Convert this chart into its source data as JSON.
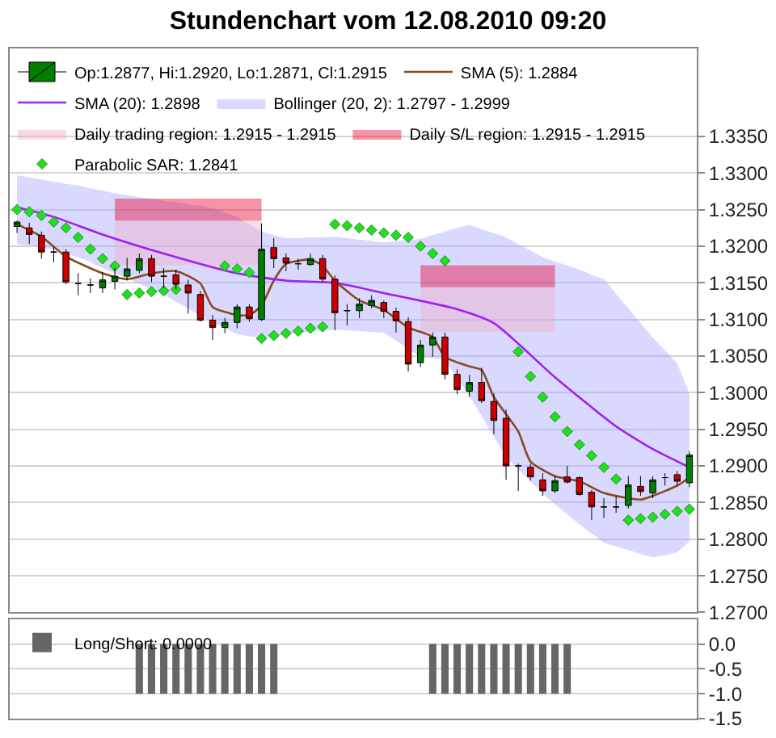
{
  "chart_data": [
    {
      "type": "candlestick",
      "title": "Stundenchart vom 12.08.2010 09:20",
      "categories": [
        null,
        null,
        null,
        null,
        null,
        null,
        null,
        null,
        null,
        null,
        null,
        null,
        null,
        null,
        null,
        null,
        null,
        null,
        null,
        null,
        null,
        null,
        null,
        null,
        null,
        null,
        null,
        null,
        null,
        null,
        null,
        null,
        null,
        null,
        null,
        null,
        null,
        null,
        null,
        null,
        null,
        null,
        null,
        null,
        null,
        null,
        null,
        null,
        null,
        null,
        null,
        null,
        null,
        null,
        null,
        null
      ],
      "series": [
        {
          "type": "candlestick",
          "name": "Op:1.2877, Hi:1.2920, Lo:1.2871, Cl:1.2915",
          "colors": [
            "#008000",
            "#cc0000",
            "#cc0000",
            "#000000",
            "#cc0000",
            "#000000",
            "#000000",
            "#008000",
            "#008000",
            "#008000",
            "#008000",
            "#cc0000",
            "#000000",
            "#cc0000",
            "#cc0000",
            "#cc0000",
            "#cc0000",
            "#008000",
            "#008000",
            "#cc0000",
            "#008000",
            "#cc0000",
            "#cc0000",
            "#000000",
            "#008000",
            "#cc0000",
            "#cc0000",
            "#000000",
            "#008000",
            "#008000",
            "#cc0000",
            "#cc0000",
            "#cc0000",
            "#008000",
            "#008000",
            "#cc0000",
            "#cc0000",
            "#008000",
            "#cc0000",
            "#cc0000",
            "#cc0000",
            "#000000",
            "#cc0000",
            "#cc0000",
            "#008000",
            "#cc0000",
            "#cc0000",
            "#cc0000",
            "#000000",
            "#000000",
            "#008000",
            "#cc0000",
            "#008000",
            "#000000",
            "#cc0000",
            "#008000"
          ],
          "ohlc": [
            [
              1.3227,
              1.3235,
              1.3218,
              1.3233
            ],
            [
              1.3225,
              1.3232,
              1.3203,
              1.3216
            ],
            [
              1.3215,
              1.322,
              1.3183,
              1.3192
            ],
            [
              1.3192,
              1.32,
              1.3178,
              1.3192
            ],
            [
              1.3192,
              1.3196,
              1.3148,
              1.3151
            ],
            [
              1.3149,
              1.3163,
              1.3133,
              1.3149
            ],
            [
              1.3147,
              1.3156,
              1.3136,
              1.3147
            ],
            [
              1.3143,
              1.3165,
              1.3136,
              1.3154
            ],
            [
              1.3152,
              1.317,
              1.3141,
              1.3159
            ],
            [
              1.3159,
              1.3184,
              1.3153,
              1.3169
            ],
            [
              1.3167,
              1.319,
              1.3163,
              1.3183
            ],
            [
              1.3183,
              1.3188,
              1.3151,
              1.3159
            ],
            [
              1.3159,
              1.317,
              1.3143,
              1.3159
            ],
            [
              1.3161,
              1.3168,
              1.3141,
              1.3148
            ],
            [
              1.3147,
              1.3154,
              1.3108,
              1.3136
            ],
            [
              1.3134,
              1.3139,
              1.3097,
              1.3099
            ],
            [
              1.3099,
              1.3106,
              1.3072,
              1.3089
            ],
            [
              1.3089,
              1.3102,
              1.3081,
              1.3096
            ],
            [
              1.3096,
              1.3121,
              1.3088,
              1.3117
            ],
            [
              1.3117,
              1.3121,
              1.3097,
              1.3101
            ],
            [
              1.31,
              1.3231,
              1.3098,
              1.3196
            ],
            [
              1.3198,
              1.3211,
              1.317,
              1.3183
            ],
            [
              1.3184,
              1.319,
              1.3166,
              1.3177
            ],
            [
              1.3176,
              1.3183,
              1.3168,
              1.3176
            ],
            [
              1.3175,
              1.319,
              1.3173,
              1.3183
            ],
            [
              1.3183,
              1.3188,
              1.3151,
              1.3155
            ],
            [
              1.3155,
              1.316,
              1.3085,
              1.3109
            ],
            [
              1.3112,
              1.3121,
              1.3092,
              1.3112
            ],
            [
              1.3112,
              1.3129,
              1.3102,
              1.3121
            ],
            [
              1.3119,
              1.3133,
              1.3115,
              1.3126
            ],
            [
              1.3123,
              1.3126,
              1.3102,
              1.3111
            ],
            [
              1.3111,
              1.3116,
              1.3082,
              1.3098
            ],
            [
              1.3097,
              1.3103,
              1.3029,
              1.3039
            ],
            [
              1.3041,
              1.3072,
              1.3035,
              1.3065
            ],
            [
              1.3065,
              1.3082,
              1.3049,
              1.3076
            ],
            [
              1.3076,
              1.3082,
              1.3018,
              1.3025
            ],
            [
              1.3025,
              1.3032,
              1.2998,
              1.3004
            ],
            [
              1.3002,
              1.3024,
              1.2994,
              1.3014
            ],
            [
              1.3014,
              1.3034,
              1.2986,
              1.2989
            ],
            [
              1.2988,
              1.2999,
              1.2943,
              1.2962
            ],
            [
              1.2965,
              1.2977,
              1.2881,
              1.29
            ],
            [
              1.29,
              1.2903,
              1.2866,
              1.29
            ],
            [
              1.2898,
              1.2903,
              1.288,
              1.2885
            ],
            [
              1.2881,
              1.289,
              1.2859,
              1.2866
            ],
            [
              1.2866,
              1.2886,
              1.2863,
              1.288
            ],
            [
              1.2885,
              1.29,
              1.2876,
              1.2878
            ],
            [
              1.2884,
              1.2886,
              1.2859,
              1.2861
            ],
            [
              1.2864,
              1.2867,
              1.2826,
              1.2844
            ],
            [
              1.2844,
              1.2856,
              1.2829,
              1.2844
            ],
            [
              1.2844,
              1.2859,
              1.2836,
              1.2844
            ],
            [
              1.2846,
              1.2886,
              1.2842,
              1.2874
            ],
            [
              1.2872,
              1.2886,
              1.2859,
              1.2865
            ],
            [
              1.2863,
              1.2886,
              1.2856,
              1.2881
            ],
            [
              1.2884,
              1.289,
              1.2873,
              1.2884
            ],
            [
              1.2888,
              1.2893,
              1.2873,
              1.2879
            ],
            [
              1.2877,
              1.292,
              1.2871,
              1.2915
            ]
          ]
        },
        {
          "type": "line",
          "name": "SMA (5): 1.2884",
          "color": "#8b4a1c",
          "values": [
            1.323,
            null,
            1.3213,
            null,
            1.3186,
            null,
            null,
            1.3163,
            null,
            1.3155,
            null,
            1.3163,
            null,
            1.3166,
            null,
            1.3149,
            1.3117,
            null,
            1.3106,
            1.3106,
            1.3119,
            1.3153,
            1.3176,
            1.318,
            1.3182,
            1.3173,
            1.3153,
            null,
            1.3126,
            null,
            1.3113,
            null,
            1.3089,
            null,
            1.3076,
            1.3049,
            null,
            1.3036,
            1.3031,
            1.2994,
            null,
            1.2947,
            1.2906,
            null,
            1.2886,
            null,
            1.2879,
            null,
            1.2863,
            null,
            null,
            1.2854,
            1.2859,
            null,
            1.2873,
            1.2884
          ]
        },
        {
          "type": "line",
          "name": "SMA (20): 1.2898",
          "color": "#a020f0",
          "values": [
            1.3253,
            null,
            null,
            1.324,
            null,
            null,
            null,
            1.3216,
            null,
            null,
            null,
            null,
            1.319,
            null,
            null,
            null,
            null,
            null,
            1.3163,
            null,
            null,
            null,
            1.3153,
            null,
            null,
            null,
            1.315,
            null,
            null,
            null,
            1.3136,
            null,
            null,
            null,
            null,
            null,
            1.3114,
            null,
            null,
            1.3095,
            null,
            null,
            null,
            null,
            1.3021,
            null,
            null,
            null,
            null,
            1.2954,
            null,
            null,
            1.2923,
            null,
            null,
            1.2898
          ]
        },
        {
          "type": "area",
          "name": "Bollinger (20, 2): 1.2797 - 1.2999",
          "color": "#aaaaff",
          "values": [
            null,
            null,
            null,
            null,
            null,
            null,
            null,
            null,
            null,
            null,
            null,
            null,
            null,
            null,
            null,
            null,
            null,
            null,
            null,
            null,
            null,
            null,
            null,
            null,
            null,
            null,
            null,
            null,
            null,
            null,
            null,
            null,
            null,
            null,
            null,
            null,
            null,
            null,
            null,
            null,
            null,
            null,
            null,
            null,
            null,
            null,
            null,
            null,
            null,
            null,
            null,
            null,
            null,
            null,
            null,
            null
          ],
          "upper": [
            1.3297,
            1.3294,
            1.3291,
            1.3288,
            1.3285,
            1.3283,
            1.3279,
            1.3276,
            1.3272,
            1.327,
            1.3267,
            1.3265,
            1.3262,
            1.326,
            1.3257,
            1.3255,
            1.3252,
            1.3246,
            1.324,
            1.323,
            1.322,
            1.3215,
            1.3211,
            1.3211,
            1.3212,
            1.3212,
            1.3213,
            1.3211,
            1.3209,
            1.3207,
            1.3205,
            1.3207,
            1.3208,
            1.321,
            1.3215,
            1.322,
            1.3225,
            1.3229,
            1.3223,
            1.3218,
            1.3212,
            1.3203,
            1.3194,
            1.3185,
            1.3179,
            1.3174,
            1.3168,
            1.3161,
            1.3155,
            1.3135,
            1.3115,
            1.3095,
            1.3075,
            1.3058,
            1.304,
            1.2999
          ],
          "lower": [
            1.3203,
            1.3201,
            1.3198,
            1.3196,
            1.319,
            1.3185,
            1.3178,
            1.317,
            1.3163,
            1.3156,
            1.3149,
            1.3141,
            1.3134,
            1.3124,
            1.3115,
            1.3105,
            1.3096,
            1.3088,
            1.308,
            1.3077,
            1.3075,
            1.3077,
            1.308,
            1.3082,
            1.3083,
            1.3085,
            1.3086,
            1.3085,
            1.3084,
            1.3083,
            1.3082,
            1.3071,
            1.306,
            1.3049,
            1.3047,
            1.3045,
            1.302,
            1.2996,
            1.2968,
            1.294,
            1.2912,
            1.2895,
            1.2879,
            1.2862,
            1.2848,
            1.2834,
            1.282,
            1.2808,
            1.2795,
            1.279,
            1.2785,
            1.278,
            1.2775,
            1.2778,
            1.2782,
            1.2797
          ]
        },
        {
          "type": "area",
          "name": "Daily trading region: 1.2915 - 1.2915",
          "color": "#f0b0c8",
          "values": [
            null,
            null,
            null,
            null,
            null,
            null,
            null,
            null,
            null,
            null,
            null,
            null,
            null,
            null,
            null,
            null,
            null,
            null,
            null,
            null,
            null,
            null,
            null,
            null,
            null,
            null,
            null,
            null,
            null,
            null,
            null,
            null,
            null,
            null,
            null,
            null,
            null,
            null,
            null,
            null,
            null,
            null,
            null,
            null,
            null,
            null,
            null,
            null,
            null,
            null,
            null,
            null,
            null,
            null,
            null,
            null
          ],
          "upper": [
            null,
            null,
            null,
            null,
            null,
            null,
            null,
            null,
            1.3235,
            1.3235,
            1.3235,
            1.3235,
            1.3235,
            1.3235,
            1.3235,
            1.3235,
            1.3235,
            1.3235,
            1.3235,
            1.3235,
            1.3235,
            null,
            null,
            null,
            null,
            null,
            null,
            null,
            null,
            null,
            null,
            null,
            null,
            1.3144,
            1.3144,
            1.3144,
            1.3144,
            1.3144,
            1.3144,
            1.3144,
            1.3144,
            1.3144,
            1.3144,
            1.3144,
            1.3144,
            null,
            null,
            null,
            null,
            null,
            null,
            null,
            null,
            null,
            null,
            null
          ],
          "lower": [
            null,
            null,
            null,
            null,
            null,
            null,
            null,
            null,
            1.3174,
            1.3174,
            1.3174,
            1.3174,
            1.3174,
            1.3174,
            1.3174,
            1.3174,
            1.3174,
            1.3174,
            1.3174,
            1.3174,
            1.3174,
            null,
            null,
            null,
            null,
            null,
            null,
            null,
            null,
            null,
            null,
            null,
            null,
            1.3083,
            1.3083,
            1.3083,
            1.3083,
            1.3083,
            1.3083,
            1.3083,
            1.3083,
            1.3083,
            1.3083,
            1.3083,
            1.3083,
            null,
            null,
            null,
            null,
            null,
            null,
            null,
            null,
            null,
            null,
            null
          ]
        },
        {
          "type": "area",
          "name": "Daily S/L region: 1.2915 - 1.2915",
          "color": "#e8103c",
          "values": [
            null,
            null,
            null,
            null,
            null,
            null,
            null,
            null,
            null,
            null,
            null,
            null,
            null,
            null,
            null,
            null,
            null,
            null,
            null,
            null,
            null,
            null,
            null,
            null,
            null,
            null,
            null,
            null,
            null,
            null,
            null,
            null,
            null,
            null,
            null,
            null,
            null,
            null,
            null,
            null,
            null,
            null,
            null,
            null,
            null,
            null,
            null,
            null,
            null,
            null,
            null,
            null,
            null,
            null,
            null,
            null
          ],
          "upper": [
            null,
            null,
            null,
            null,
            null,
            null,
            null,
            null,
            1.3265,
            1.3265,
            1.3265,
            1.3265,
            1.3265,
            1.3265,
            1.3265,
            1.3265,
            1.3265,
            1.3265,
            1.3265,
            1.3265,
            1.3265,
            null,
            null,
            null,
            null,
            null,
            null,
            null,
            null,
            null,
            null,
            null,
            null,
            1.3174,
            1.3174,
            1.3174,
            1.3174,
            1.3174,
            1.3174,
            1.3174,
            1.3174,
            1.3174,
            1.3174,
            1.3174,
            1.3174,
            null,
            null,
            null,
            null,
            null,
            null,
            null,
            null,
            null,
            null,
            null
          ],
          "lower": [
            null,
            null,
            null,
            null,
            null,
            null,
            null,
            null,
            1.3235,
            1.3235,
            1.3235,
            1.3235,
            1.3235,
            1.3235,
            1.3235,
            1.3235,
            1.3235,
            1.3235,
            1.3235,
            1.3235,
            1.3235,
            null,
            null,
            null,
            null,
            null,
            null,
            null,
            null,
            null,
            null,
            null,
            null,
            1.3144,
            1.3144,
            1.3144,
            1.3144,
            1.3144,
            1.3144,
            1.3144,
            1.3144,
            1.3144,
            1.3144,
            1.3144,
            1.3144,
            null,
            null,
            null,
            null,
            null,
            null,
            null,
            null,
            null,
            null,
            null
          ]
        },
        {
          "type": "scatter",
          "name": "Parabolic SAR: 1.2841",
          "color": "#22dd22",
          "marker": "diamond",
          "values": [
            1.325,
            1.3247,
            1.3242,
            1.3233,
            1.3225,
            1.3212,
            1.3196,
            1.3183,
            1.3173,
            1.3134,
            1.3136,
            1.3138,
            1.3139,
            1.3141,
            null,
            null,
            null,
            1.3173,
            1.3169,
            1.3164,
            1.3074,
            1.3078,
            1.3081,
            1.3084,
            1.3088,
            1.309,
            1.323,
            1.3228,
            1.3225,
            1.3222,
            1.3218,
            1.3215,
            1.3212,
            1.32,
            1.319,
            1.318,
            null,
            null,
            null,
            null,
            null,
            1.3056,
            1.3022,
            1.2994,
            1.2967,
            1.2947,
            1.2929,
            1.2914,
            1.2898,
            1.2882,
            1.2826,
            1.2828,
            1.283,
            1.2834,
            1.2838,
            1.2841
          ]
        }
      ],
      "ylim": [
        1.27,
        1.347
      ],
      "yticks": [
        {
          "value": 1.27,
          "label": "1.2700"
        },
        {
          "value": 1.275,
          "label": "1.2750"
        },
        {
          "value": 1.28,
          "label": "1.2800"
        },
        {
          "value": 1.285,
          "label": "1.2850"
        },
        {
          "value": 1.29,
          "label": "1.2900"
        },
        {
          "value": 1.295,
          "label": "1.2950"
        },
        {
          "value": 1.3,
          "label": "1.3000"
        },
        {
          "value": 1.305,
          "label": "1.3050"
        },
        {
          "value": 1.31,
          "label": "1.3100"
        },
        {
          "value": 1.315,
          "label": "1.3150"
        },
        {
          "value": 1.32,
          "label": "1.3200"
        },
        {
          "value": 1.325,
          "label": "1.3250"
        },
        {
          "value": 1.33,
          "label": "1.3300"
        },
        {
          "value": 1.335,
          "label": "1.3350"
        }
      ],
      "grid": "y",
      "legend": "top",
      "tick_labels": "y"
    },
    {
      "type": "bar",
      "categories": [
        null,
        null,
        null,
        null,
        null,
        null,
        null,
        null,
        null,
        null,
        null,
        null,
        null,
        null,
        null,
        null,
        null,
        null,
        null,
        null,
        null,
        null,
        null,
        null,
        null,
        null,
        null,
        null,
        null,
        null,
        null,
        null,
        null,
        null,
        null,
        null,
        null,
        null,
        null,
        null,
        null,
        null,
        null,
        null,
        null,
        null,
        null,
        null,
        null,
        null,
        null,
        null,
        null,
        null,
        null,
        null
      ],
      "series": [
        {
          "name": "Long/Short: 0.0000",
          "color": "#666666",
          "values": [
            0,
            0,
            0,
            0,
            0,
            0,
            0,
            0,
            0,
            0,
            -1,
            -1,
            -1,
            -1,
            -1,
            -1,
            -1,
            -1,
            -1,
            -1,
            -1,
            -1,
            0,
            0,
            0,
            0,
            0,
            0,
            0,
            0,
            0,
            0,
            0,
            0,
            -1,
            -1,
            -1,
            -1,
            -1,
            -1,
            -1,
            -1,
            -1,
            -1,
            -1,
            -1,
            0,
            0,
            0,
            0,
            0,
            0,
            0,
            0,
            0,
            0
          ]
        }
      ],
      "ylim": [
        -1.5,
        0.5
      ],
      "yticks": [
        {
          "value": 0,
          "label": "0.0"
        },
        {
          "value": -0.5,
          "label": "-0.5"
        },
        {
          "value": -1,
          "label": "-1.0"
        },
        {
          "value": -1.5,
          "label": "-1.5"
        }
      ],
      "grid": "y",
      "legend": "top left",
      "tick_labels": "y"
    }
  ]
}
